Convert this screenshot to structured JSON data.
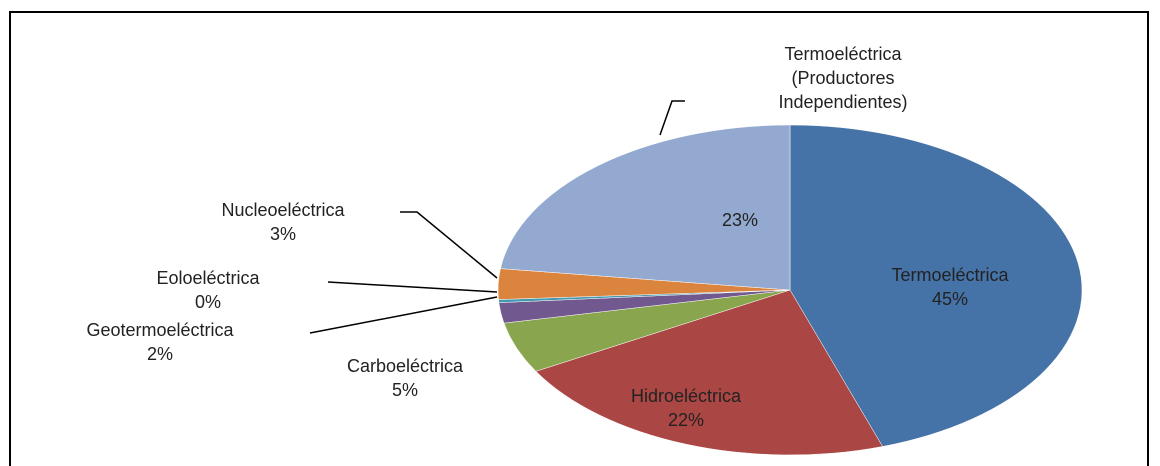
{
  "chart_data": {
    "type": "pie",
    "categories": [
      "Termoeléctrica",
      "Hidroeléctrica",
      "Carboeléctrica",
      "Geotermoeléctrica",
      "Eoloeléctrica",
      "Nucleoeléctrica",
      "Termoeléctrica (Productores Independientes)"
    ],
    "values": [
      45,
      22,
      5,
      2,
      0.3,
      3,
      23
    ],
    "value_labels": [
      "45%",
      "22%",
      "5%",
      "2%",
      "0%",
      "3%",
      "23%"
    ],
    "colors": [
      "#4572a7",
      "#aa4643",
      "#89a54e",
      "#71588f",
      "#4198af",
      "#db843d",
      "#93a9cf"
    ]
  }
}
